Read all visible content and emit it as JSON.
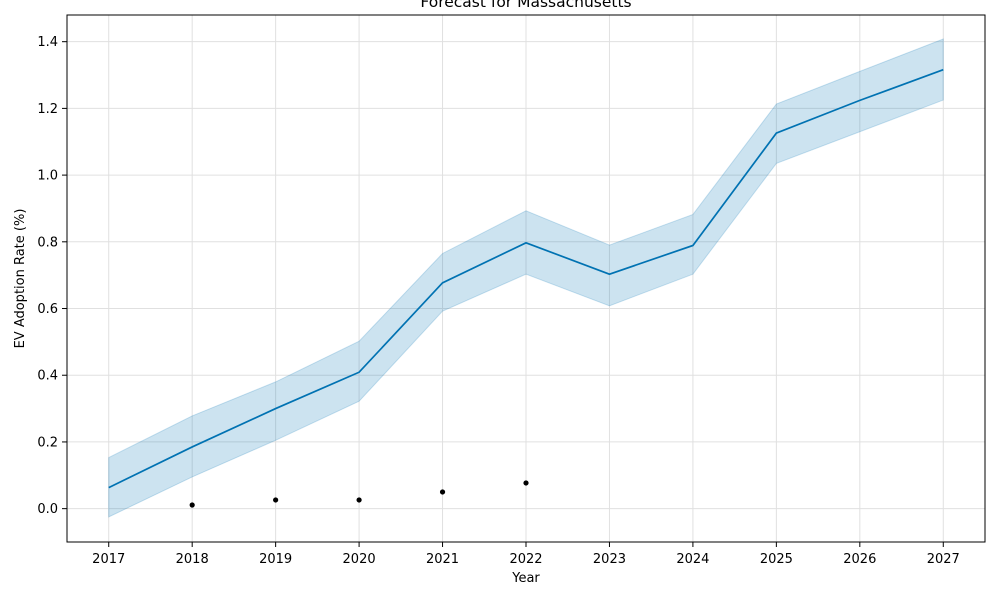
{
  "chart_data": {
    "type": "line",
    "title": "Forecast for Massachusetts",
    "xlabel": "Year",
    "ylabel": "EV Adoption Rate (%)",
    "x_ticks": [
      "2017",
      "2018",
      "2019",
      "2020",
      "2021",
      "2022",
      "2023",
      "2024",
      "2025",
      "2026",
      "2027"
    ],
    "y_ticks": [
      "0.0",
      "0.2",
      "0.4",
      "0.6",
      "0.8",
      "1.0",
      "1.2",
      "1.4"
    ],
    "xlim": [
      2016.5,
      2027.5
    ],
    "ylim": [
      -0.1,
      1.48
    ],
    "grid": true,
    "forecast": {
      "x": [
        2017,
        2018,
        2019,
        2020,
        2021,
        2022,
        2023,
        2024,
        2025,
        2026,
        2027
      ],
      "yhat": [
        0.063,
        0.185,
        0.3,
        0.409,
        0.677,
        0.797,
        0.703,
        0.789,
        1.126,
        1.224,
        1.316
      ],
      "yhat_lower": [
        -0.025,
        0.095,
        0.205,
        0.322,
        0.592,
        0.703,
        0.608,
        0.703,
        1.035,
        1.13,
        1.225
      ],
      "yhat_upper": [
        0.153,
        0.278,
        0.38,
        0.502,
        0.765,
        0.893,
        0.79,
        0.882,
        1.213,
        1.311,
        1.408
      ]
    },
    "observed": {
      "x": [
        2018,
        2019,
        2020,
        2021,
        2022
      ],
      "y": [
        0.011,
        0.026,
        0.026,
        0.05,
        0.077
      ]
    },
    "colors": {
      "line": "#0072B2",
      "band": "#0072B2",
      "points": "#000000",
      "grid": "#e0e0e0"
    }
  }
}
